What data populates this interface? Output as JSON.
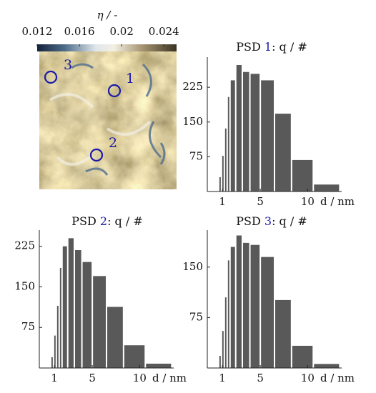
{
  "chart_data": [
    {
      "type": "heatmap",
      "colorbar_label": "η / -",
      "clim": [
        0.012,
        0.0252
      ],
      "colorbar_ticks": [
        0.012,
        0.016,
        0.02,
        0.024
      ],
      "markers": [
        {
          "label": "1"
        },
        {
          "label": "2"
        },
        {
          "label": "3"
        }
      ]
    },
    {
      "type": "histogram",
      "title_prefix": "PSD",
      "title_number": "1",
      "title_suffix": ": q / #",
      "xlabel": "d / nm",
      "bins": [
        0.6,
        0.9,
        1.2,
        1.5,
        1.8,
        2.4,
        3.1,
        3.9,
        5.0,
        6.5,
        8.3,
        10.6,
        13.4
      ],
      "values": [
        31,
        77,
        136,
        204,
        240,
        273,
        258,
        254,
        240,
        168,
        68,
        15
      ],
      "color": "#595959",
      "xlim": [
        -0.6,
        13.6
      ],
      "xticks": [
        1,
        5,
        10
      ],
      "ylim": [
        0,
        290
      ],
      "yticks": [
        75,
        150,
        225
      ]
    },
    {
      "type": "histogram",
      "title_prefix": "PSD",
      "title_number": "2",
      "title_suffix": ": q / #",
      "xlabel": "d / nm",
      "bins": [
        0.6,
        0.9,
        1.2,
        1.5,
        1.8,
        2.4,
        3.1,
        3.9,
        5.0,
        6.5,
        8.3,
        10.6,
        13.4
      ],
      "values": [
        20,
        60,
        115,
        185,
        225,
        240,
        218,
        196,
        170,
        113,
        42,
        8
      ],
      "color": "#595959",
      "xlim": [
        -0.6,
        13.6
      ],
      "xticks": [
        1,
        5,
        10
      ],
      "ylim": [
        0,
        255
      ],
      "yticks": [
        75,
        150,
        225
      ]
    },
    {
      "type": "histogram",
      "title_prefix": "PSD",
      "title_number": "3",
      "title_suffix": ": q / #",
      "xlabel": "d / nm",
      "bins": [
        0.6,
        0.9,
        1.2,
        1.5,
        1.8,
        2.4,
        3.1,
        3.9,
        5.0,
        6.5,
        8.3,
        10.6,
        13.4
      ],
      "values": [
        18,
        55,
        105,
        160,
        180,
        197,
        186,
        183,
        165,
        101,
        33,
        6
      ],
      "color": "#595959",
      "xlim": [
        -0.6,
        13.6
      ],
      "xticks": [
        1,
        5,
        10
      ],
      "ylim": [
        0,
        205
      ],
      "yticks": [
        75,
        150
      ]
    }
  ]
}
